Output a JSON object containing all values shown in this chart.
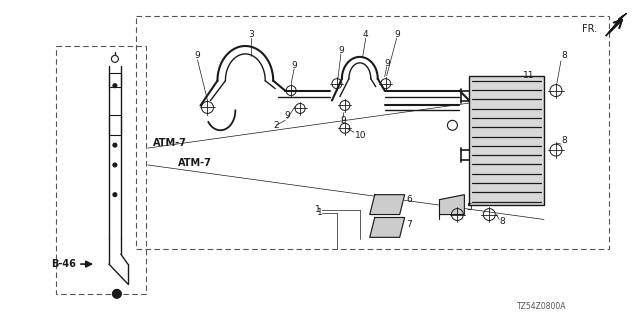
{
  "bg_color": "#ffffff",
  "diagram_code": "TZ54Z0800A",
  "fr_label": "FR.",
  "b46_label": "B-46",
  "line_color": "#1a1a1a",
  "dashed_color": "#555555"
}
